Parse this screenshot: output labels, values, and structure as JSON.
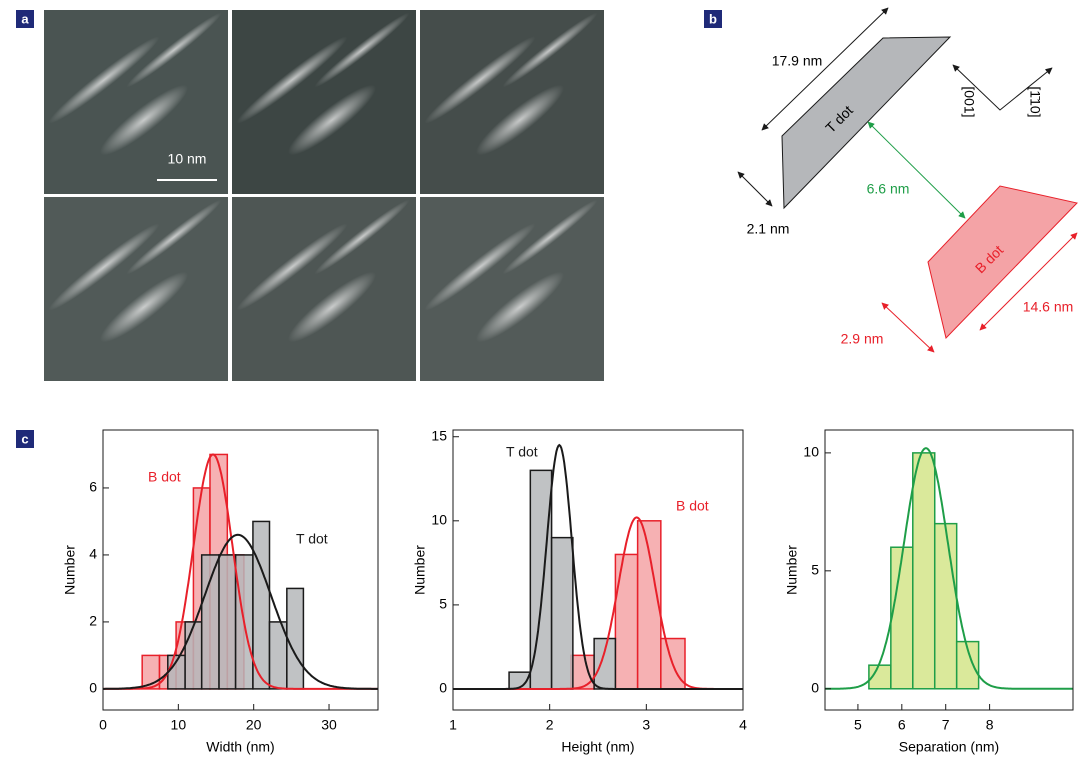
{
  "panels": {
    "a": "a",
    "b": "b",
    "c": "c"
  },
  "scale_bar": "10 nm",
  "diagram": {
    "t_length": "17.9 nm",
    "t_name": "T dot",
    "t_width": "2.1 nm",
    "separation": "6.6 nm",
    "b_name": "B dot",
    "b_length": "14.6 nm",
    "b_width": "2.9 nm",
    "axis_1": "[001]",
    "axis_2": "[1̄10]"
  },
  "chart_data": [
    {
      "type": "histogram",
      "xlabel": "Width (nm)",
      "ylabel": "Number",
      "xlim": [
        0,
        36.5
      ],
      "ylim": [
        -0.63,
        7.73
      ],
      "xticks": [
        0,
        10,
        20,
        30
      ],
      "yticks": [
        0,
        2,
        4,
        6
      ],
      "series": [
        {
          "name": "B dot",
          "color": "#e8202a",
          "fill": "#f4a3a6",
          "bins": [
            5.2,
            7.5,
            9.7,
            12,
            14.2,
            16.5,
            18.7
          ],
          "values": [
            1,
            1,
            2,
            6,
            7,
            4
          ],
          "fit": {
            "mean": 14.6,
            "sd": 2.6,
            "peak": 7
          }
        },
        {
          "name": "T dot",
          "color": "#1a1a1a",
          "fill": "#b5b7ba",
          "bins": [
            8.6,
            10.9,
            13.1,
            15.4,
            17.6,
            19.9,
            22.1,
            24.4,
            26.6
          ],
          "values": [
            1,
            2,
            4,
            4,
            4,
            5,
            2,
            3
          ],
          "fit": {
            "mean": 17.9,
            "sd": 4.4,
            "peak": 4.6
          }
        }
      ]
    },
    {
      "type": "histogram",
      "xlabel": "Height (nm)",
      "ylabel": "Number",
      "xlim": [
        1,
        4
      ],
      "ylim": [
        -1.25,
        15.4
      ],
      "xticks": [
        1,
        2,
        3,
        4
      ],
      "yticks": [
        0,
        5,
        10,
        15
      ],
      "series": [
        {
          "name": "B dot",
          "color": "#e8202a",
          "fill": "#f4a3a6",
          "bins": [
            2.22,
            2.46,
            2.68,
            2.91,
            3.15,
            3.4
          ],
          "values": [
            2,
            0,
            8,
            10,
            3
          ],
          "fit": {
            "mean": 2.9,
            "sd": 0.19,
            "peak": 10.2
          }
        },
        {
          "name": "T dot",
          "color": "#1a1a1a",
          "fill": "#b5b7ba",
          "bins": [
            1.58,
            1.8,
            2.02,
            2.24,
            2.46,
            2.68
          ],
          "values": [
            1,
            13,
            9,
            0,
            3
          ],
          "fit": {
            "mean": 2.1,
            "sd": 0.13,
            "peak": 14.5
          }
        }
      ]
    },
    {
      "type": "histogram",
      "xlabel": "Separation (nm)",
      "ylabel": "Number",
      "xlim": [
        4.25,
        9.9
      ],
      "ylim": [
        -0.9,
        10.97
      ],
      "xticks": [
        5,
        6,
        7,
        8
      ],
      "yticks": [
        0,
        5,
        10
      ],
      "series": [
        {
          "color": "#1f9e48",
          "fill": "#d4e58a",
          "bins": [
            5.25,
            5.75,
            6.25,
            6.75,
            7.25,
            7.75
          ],
          "values": [
            1,
            6,
            10,
            7,
            2
          ],
          "fit": {
            "mean": 6.55,
            "sd": 0.5,
            "peak": 10.2
          }
        }
      ]
    }
  ]
}
